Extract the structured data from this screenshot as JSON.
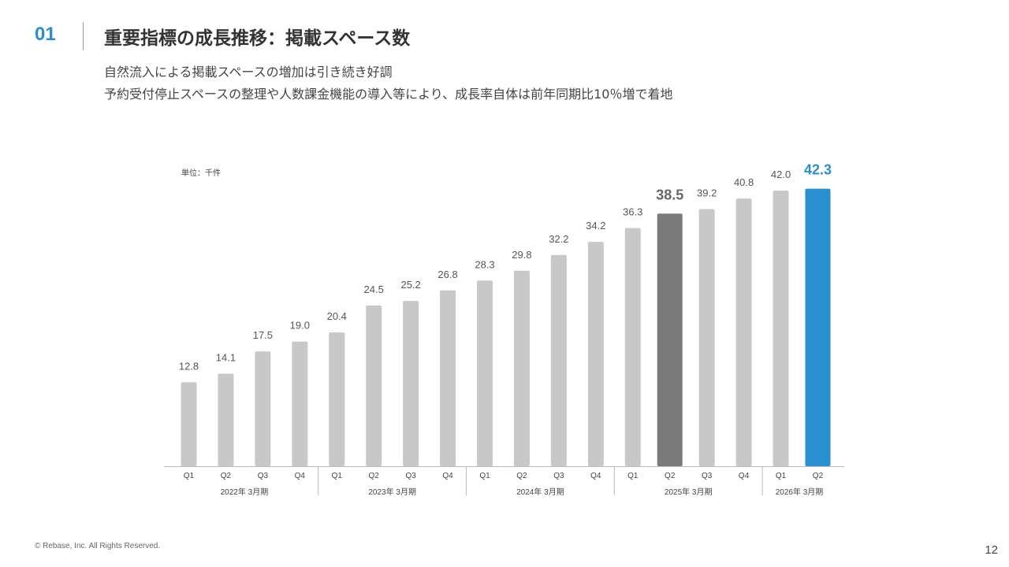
{
  "header": {
    "section_number": "01",
    "title": "重要指標の成長推移：掲載スペース数",
    "subtitle_line1": "自然流入による掲載スペースの増加は引き続き好調",
    "subtitle_line2": "予約受付停止スペースの整理や人数課金機能の導入等により、成長率自体は前年同期比10％増で着地"
  },
  "footer": {
    "copyright": "© Rebase, Inc. All Rights Reserved.",
    "page_number": "12"
  },
  "colors": {
    "bar_default": "#c8c8c8",
    "bar_compare": "#7b7b7b",
    "bar_highlight": "#2a8fd0",
    "label_default": "#555555",
    "axis": "#bbbbbb"
  },
  "chart_data": {
    "type": "bar",
    "title": "",
    "unit_label": "単位：千件",
    "xlabel": "",
    "ylabel": "",
    "ylim": [
      0,
      45
    ],
    "categories": [
      "Q1",
      "Q2",
      "Q3",
      "Q4",
      "Q1",
      "Q2",
      "Q3",
      "Q4",
      "Q1",
      "Q2",
      "Q3",
      "Q4",
      "Q1",
      "Q2",
      "Q3",
      "Q4",
      "Q1",
      "Q2"
    ],
    "values": [
      12.8,
      14.1,
      17.5,
      19.0,
      20.4,
      24.5,
      25.2,
      26.8,
      28.3,
      29.8,
      32.2,
      34.2,
      36.3,
      38.5,
      39.2,
      40.8,
      42.0,
      42.3
    ],
    "value_labels": [
      "12.8",
      "14.1",
      "17.5",
      "19.0",
      "20.4",
      "24.5",
      "25.2",
      "26.8",
      "28.3",
      "29.8",
      "32.2",
      "34.2",
      "36.3",
      "38.5",
      "39.2",
      "40.8",
      "42.0",
      "42.3"
    ],
    "emphasis": [
      "normal",
      "normal",
      "normal",
      "normal",
      "normal",
      "normal",
      "normal",
      "normal",
      "normal",
      "normal",
      "normal",
      "normal",
      "normal",
      "compare",
      "normal",
      "normal",
      "normal",
      "highlight"
    ],
    "groups": [
      {
        "label": "2022年 3月期",
        "count": 4
      },
      {
        "label": "2023年 3月期",
        "count": 4
      },
      {
        "label": "2024年 3月期",
        "count": 4
      },
      {
        "label": "2025年 3月期",
        "count": 4
      },
      {
        "label": "2026年 3月期",
        "count": 2
      }
    ],
    "grid": false,
    "legend": "none"
  }
}
